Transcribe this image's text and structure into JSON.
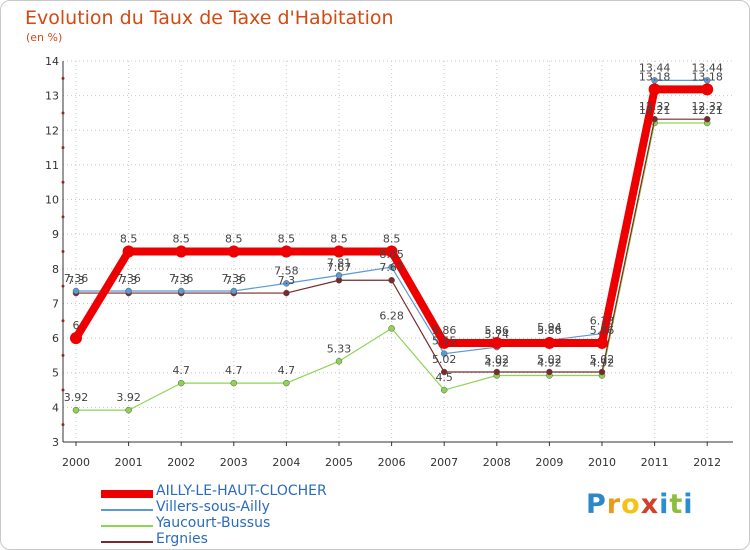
{
  "chart_data": {
    "type": "line",
    "title": "Evolution du Taux de Taxe d'Habitation",
    "subtitle": "(en %)",
    "xlabel": "",
    "ylabel": "",
    "ylim": [
      3,
      14
    ],
    "y_ticks": [
      "3",
      "4",
      "5",
      "6",
      "7",
      "8",
      "9",
      "10",
      "11",
      "12",
      "13",
      "14"
    ],
    "categories": [
      "2000",
      "2001",
      "2002",
      "2003",
      "2004",
      "2005",
      "2006",
      "2007",
      "2008",
      "2009",
      "2010",
      "2011",
      "2012"
    ],
    "legend_position": "bottom-left",
    "series": [
      {
        "name": "AILLY-LE-HAUT-CLOCHER",
        "color": "#ee0000",
        "values": [
          6,
          8.5,
          8.5,
          8.5,
          8.5,
          8.5,
          8.5,
          5.86,
          5.86,
          5.86,
          5.86,
          13.18,
          13.18
        ],
        "labels": [
          "6",
          "8.5",
          "8.5",
          "8.5",
          "8.5",
          "8.5",
          "8.5",
          "5.86",
          "5.86",
          "5.86",
          "5.86",
          "13.18",
          "13.18"
        ]
      },
      {
        "name": "Villers-sous-Ailly",
        "color": "#5a9bd5",
        "values": [
          7.36,
          7.36,
          7.36,
          7.36,
          7.58,
          7.81,
          8.05,
          5.55,
          5.74,
          5.94,
          6.13,
          13.44,
          13.44
        ],
        "labels": [
          "7.36",
          "7.36",
          "7.36",
          "7.36",
          "7.58",
          "7.81",
          "8.05",
          "5.55",
          "5.74",
          "5.94",
          "6.13",
          "13.44",
          "13.44"
        ]
      },
      {
        "name": "Yaucourt-Bussus",
        "color": "#8ed454",
        "values": [
          3.92,
          3.92,
          4.7,
          4.7,
          4.7,
          5.33,
          6.28,
          4.5,
          4.92,
          4.92,
          4.92,
          12.21,
          12.21
        ],
        "labels": [
          "3.92",
          "3.92",
          "4.7",
          "4.7",
          "4.7",
          "5.33",
          "6.28",
          "4.5",
          "4.92",
          "4.92",
          "4.92",
          "12.21",
          "12.21"
        ]
      },
      {
        "name": "Ergnies",
        "color": "#7a2a2a",
        "values": [
          7.3,
          7.3,
          7.3,
          7.3,
          7.3,
          7.67,
          7.67,
          5.02,
          5.02,
          5.02,
          5.02,
          12.32,
          12.32
        ],
        "labels": [
          "7.3",
          "7.3",
          "7.3",
          "7.3",
          "7.3",
          "7.67",
          "7.67",
          "5.02",
          "5.02",
          "5.02",
          "5.02",
          "12.32",
          "12.32"
        ]
      }
    ]
  },
  "brand": {
    "letters": [
      "P",
      "r",
      "o",
      "x",
      "i",
      "t",
      "i"
    ],
    "colors": [
      "#2f86c9",
      "#e89a1e",
      "#f2c318",
      "#d23f2a",
      "#2a8fcf",
      "#8cbf3f",
      "#2a8fcf"
    ]
  }
}
